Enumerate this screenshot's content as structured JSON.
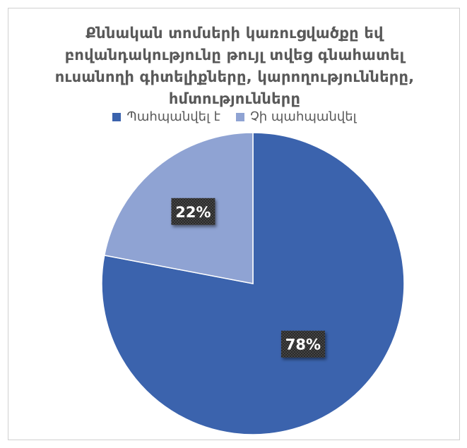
{
  "chart_data": {
    "type": "pie",
    "title": "Քննական տոմսերի կառուցվածքը եվ բովանդակությունը թույլ տվեց գնահատել ուսանողի գիտելիքները, կարողությունները, հմտությունները",
    "categories": [
      "Պահպանվել է",
      "Չի պահպանվել"
    ],
    "values": [
      78,
      22
    ],
    "data_labels": [
      "78%",
      "22%"
    ],
    "colors": [
      "#3b63ad",
      "#8fa3d3"
    ],
    "legend_position": "top"
  }
}
